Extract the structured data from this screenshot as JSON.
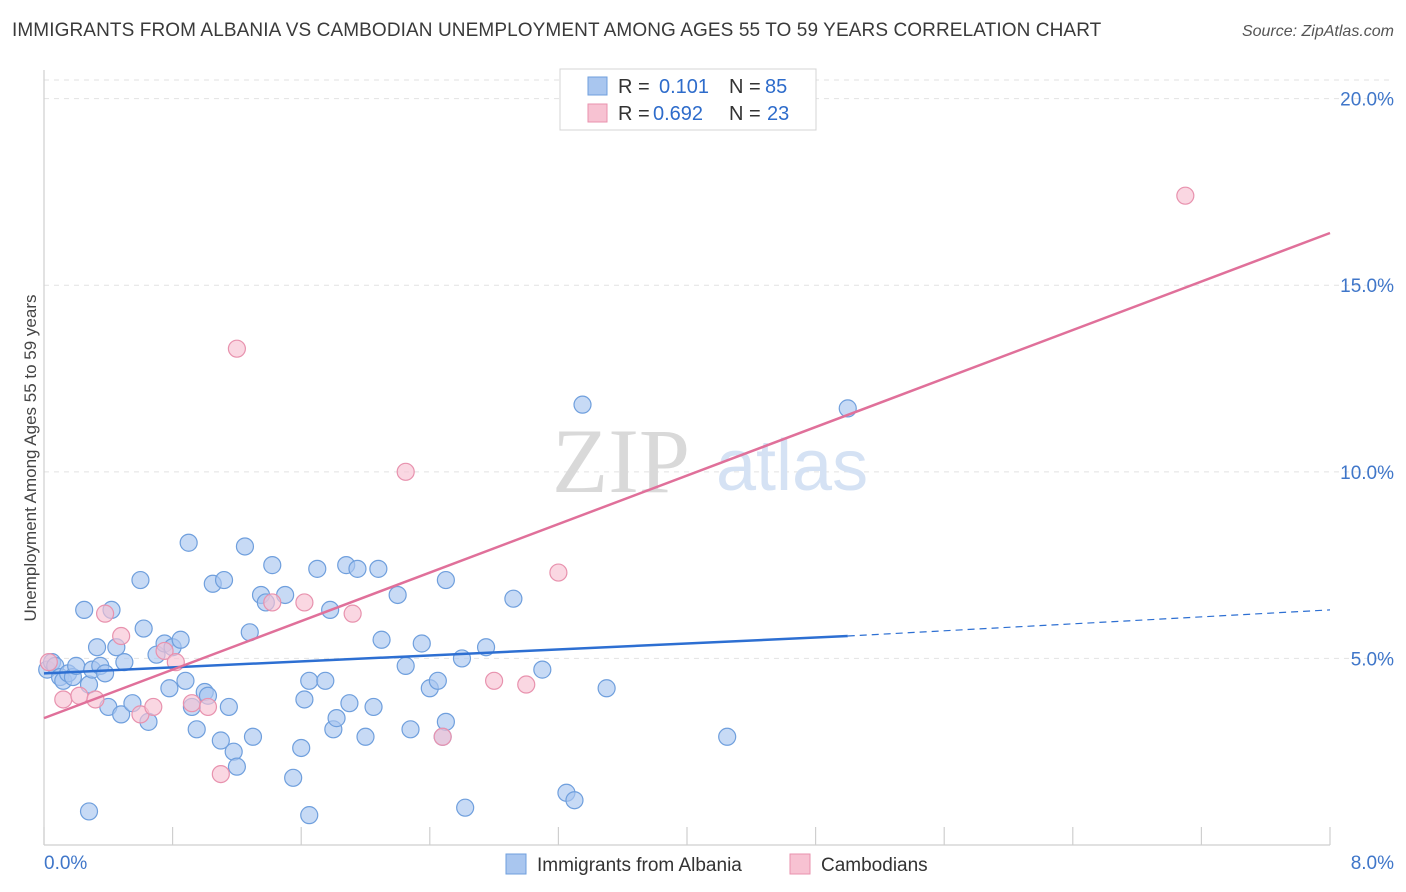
{
  "title": "IMMIGRANTS FROM ALBANIA VS CAMBODIAN UNEMPLOYMENT AMONG AGES 55 TO 59 YEARS CORRELATION CHART",
  "source": "Source: ZipAtlas.com",
  "watermark": {
    "zip": "ZIP",
    "atlas": "atlas"
  },
  "colors": {
    "albania_fill": "#a9c6ef",
    "albania_stroke": "#6f9fdd",
    "albania_line": "#2d6fd2",
    "cambodia_fill": "#f7c2d2",
    "cambodia_stroke": "#e892ae",
    "cambodia_line": "#e0709a",
    "axis_text": "#3f76c9",
    "grid": "#e2e2e2"
  },
  "legend": {
    "r_label": "R =",
    "n_label": "N =",
    "rows": [
      {
        "r": "0.101",
        "n": "85"
      },
      {
        "r": "0.692",
        "n": "23"
      }
    ]
  },
  "chart_data": {
    "type": "scatter",
    "title": "IMMIGRANTS FROM ALBANIA VS CAMBODIAN UNEMPLOYMENT AMONG AGES 55 TO 59 YEARS CORRELATION CHART",
    "xlabel": "",
    "ylabel": "Unemployment Among Ages 55 to 59 years",
    "xlim": [
      0,
      8
    ],
    "ylim": [
      0,
      20.5
    ],
    "x_tick_labels": [
      "0.0%",
      "8.0%"
    ],
    "y_ticks": [
      5,
      10,
      15,
      20
    ],
    "y_tick_labels": [
      "5.0%",
      "10.0%",
      "15.0%",
      "20.0%"
    ],
    "grid": true,
    "legend_position": "top-center",
    "series": [
      {
        "name": "Immigrants from Albania",
        "r": 0.101,
        "n": 85,
        "trend": {
          "x": [
            0,
            5.0
          ],
          "y": [
            4.6,
            5.6
          ],
          "dashed_to": {
            "x": 8.0,
            "y": 6.3
          }
        },
        "points": [
          [
            0.02,
            4.7
          ],
          [
            0.05,
            4.9
          ],
          [
            0.07,
            4.8
          ],
          [
            0.1,
            4.5
          ],
          [
            0.12,
            4.4
          ],
          [
            0.15,
            4.6
          ],
          [
            0.18,
            4.5
          ],
          [
            0.2,
            4.8
          ],
          [
            0.25,
            6.3
          ],
          [
            0.28,
            4.3
          ],
          [
            0.3,
            4.7
          ],
          [
            0.33,
            5.3
          ],
          [
            0.35,
            4.8
          ],
          [
            0.38,
            4.6
          ],
          [
            0.4,
            3.7
          ],
          [
            0.42,
            6.3
          ],
          [
            0.45,
            5.3
          ],
          [
            0.48,
            3.5
          ],
          [
            0.5,
            4.9
          ],
          [
            0.55,
            3.8
          ],
          [
            0.6,
            7.1
          ],
          [
            0.62,
            5.8
          ],
          [
            0.65,
            3.3
          ],
          [
            0.7,
            5.1
          ],
          [
            0.75,
            5.4
          ],
          [
            0.78,
            4.2
          ],
          [
            0.8,
            5.3
          ],
          [
            0.85,
            5.5
          ],
          [
            0.88,
            4.4
          ],
          [
            0.9,
            8.1
          ],
          [
            0.92,
            3.7
          ],
          [
            0.95,
            3.1
          ],
          [
            1.0,
            4.1
          ],
          [
            1.02,
            4.0
          ],
          [
            1.05,
            7.0
          ],
          [
            1.1,
            2.8
          ],
          [
            1.12,
            7.1
          ],
          [
            1.15,
            3.7
          ],
          [
            1.18,
            2.5
          ],
          [
            1.2,
            2.1
          ],
          [
            1.25,
            8.0
          ],
          [
            1.28,
            5.7
          ],
          [
            1.3,
            2.9
          ],
          [
            1.35,
            6.7
          ],
          [
            1.38,
            6.5
          ],
          [
            1.42,
            7.5
          ],
          [
            1.5,
            6.7
          ],
          [
            1.55,
            1.8
          ],
          [
            1.6,
            2.6
          ],
          [
            1.62,
            3.9
          ],
          [
            1.65,
            4.4
          ],
          [
            1.7,
            7.4
          ],
          [
            1.75,
            4.4
          ],
          [
            1.78,
            6.3
          ],
          [
            1.8,
            3.1
          ],
          [
            1.82,
            3.4
          ],
          [
            1.88,
            7.5
          ],
          [
            1.9,
            3.8
          ],
          [
            1.95,
            7.4
          ],
          [
            2.0,
            2.9
          ],
          [
            2.05,
            3.7
          ],
          [
            2.08,
            7.4
          ],
          [
            2.1,
            5.5
          ],
          [
            2.2,
            6.7
          ],
          [
            2.25,
            4.8
          ],
          [
            2.28,
            3.1
          ],
          [
            2.35,
            5.4
          ],
          [
            2.4,
            4.2
          ],
          [
            2.45,
            4.4
          ],
          [
            2.48,
            2.9
          ],
          [
            2.5,
            7.1
          ],
          [
            2.6,
            5.0
          ],
          [
            2.62,
            1.0
          ],
          [
            2.75,
            5.3
          ],
          [
            2.92,
            6.6
          ],
          [
            3.1,
            4.7
          ],
          [
            3.25,
            1.4
          ],
          [
            3.3,
            1.2
          ],
          [
            3.35,
            11.8
          ],
          [
            3.5,
            4.2
          ],
          [
            4.25,
            2.9
          ],
          [
            5.0,
            11.7
          ],
          [
            2.5,
            3.3
          ],
          [
            1.65,
            0.8
          ],
          [
            0.28,
            0.9
          ]
        ]
      },
      {
        "name": "Cambodians",
        "r": 0.692,
        "n": 23,
        "trend": {
          "x": [
            0,
            8.0
          ],
          "y": [
            3.4,
            16.4
          ]
        },
        "points": [
          [
            0.03,
            4.9
          ],
          [
            0.12,
            3.9
          ],
          [
            0.22,
            4.0
          ],
          [
            0.32,
            3.9
          ],
          [
            0.38,
            6.2
          ],
          [
            0.48,
            5.6
          ],
          [
            0.6,
            3.5
          ],
          [
            0.68,
            3.7
          ],
          [
            0.75,
            5.2
          ],
          [
            0.82,
            4.9
          ],
          [
            0.92,
            3.8
          ],
          [
            1.02,
            3.7
          ],
          [
            1.1,
            1.9
          ],
          [
            1.2,
            13.3
          ],
          [
            1.42,
            6.5
          ],
          [
            1.62,
            6.5
          ],
          [
            1.92,
            6.2
          ],
          [
            2.25,
            10.0
          ],
          [
            2.48,
            2.9
          ],
          [
            2.8,
            4.4
          ],
          [
            3.0,
            4.3
          ],
          [
            3.2,
            7.3
          ],
          [
            7.1,
            17.4
          ]
        ]
      }
    ]
  }
}
